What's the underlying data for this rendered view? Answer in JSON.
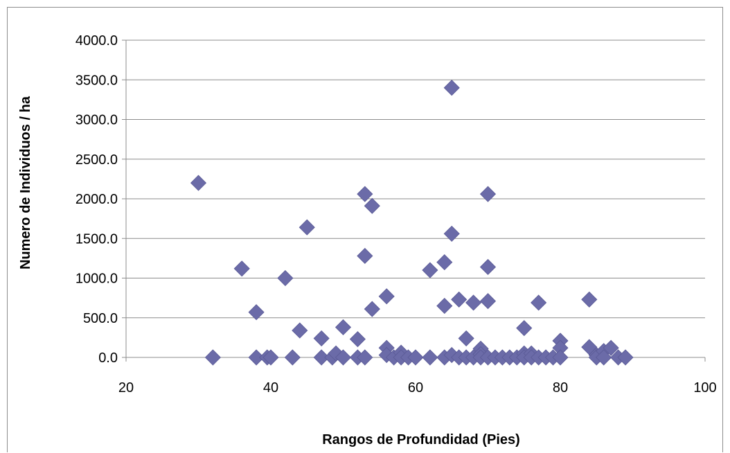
{
  "chart_data": {
    "type": "scatter",
    "title": "",
    "xlabel": "Rangos de Profundidad (Pies)",
    "ylabel": "Numero de Individuos / ha",
    "xlim": [
      20,
      100
    ],
    "ylim": [
      0,
      4000
    ],
    "x_ticks": [
      "20",
      "40",
      "60",
      "80",
      "100"
    ],
    "y_ticks": [
      "0.0",
      "500.0",
      "1000.0",
      "1500.0",
      "2000.0",
      "2500.0",
      "3000.0",
      "3500.0",
      "4000.0"
    ],
    "grid": "horizontal",
    "legend": "none",
    "marker": "diamond",
    "marker_color": "#6b6ba8",
    "points": [
      [
        30,
        2200
      ],
      [
        32,
        0
      ],
      [
        36,
        1120
      ],
      [
        38,
        570
      ],
      [
        38,
        0
      ],
      [
        39.5,
        0
      ],
      [
        40,
        0
      ],
      [
        42,
        1000
      ],
      [
        43,
        0
      ],
      [
        44,
        340
      ],
      [
        45,
        1640
      ],
      [
        47,
        240
      ],
      [
        47,
        0
      ],
      [
        48.5,
        0
      ],
      [
        49,
        50
      ],
      [
        50,
        380
      ],
      [
        50,
        0
      ],
      [
        52,
        230
      ],
      [
        52,
        0
      ],
      [
        53,
        2060
      ],
      [
        53,
        1280
      ],
      [
        53,
        0
      ],
      [
        54,
        1910
      ],
      [
        54,
        610
      ],
      [
        56,
        770
      ],
      [
        56,
        120
      ],
      [
        56,
        30
      ],
      [
        57,
        0
      ],
      [
        58,
        60
      ],
      [
        58,
        0
      ],
      [
        59,
        0
      ],
      [
        60,
        0
      ],
      [
        62,
        1100
      ],
      [
        62,
        0
      ],
      [
        64,
        1200
      ],
      [
        64,
        650
      ],
      [
        64,
        0
      ],
      [
        65,
        3400
      ],
      [
        65,
        1560
      ],
      [
        65,
        30
      ],
      [
        66,
        730
      ],
      [
        66,
        0
      ],
      [
        67,
        240
      ],
      [
        67,
        0
      ],
      [
        68,
        690
      ],
      [
        68,
        0
      ],
      [
        69,
        110
      ],
      [
        69,
        40
      ],
      [
        69,
        0
      ],
      [
        70,
        2060
      ],
      [
        70,
        1140
      ],
      [
        70,
        710
      ],
      [
        70,
        0
      ],
      [
        71,
        0
      ],
      [
        72,
        0
      ],
      [
        73,
        0
      ],
      [
        74,
        0
      ],
      [
        75,
        370
      ],
      [
        75,
        50
      ],
      [
        75,
        0
      ],
      [
        76,
        50
      ],
      [
        76,
        0
      ],
      [
        77,
        690
      ],
      [
        77,
        0
      ],
      [
        78,
        0
      ],
      [
        79,
        0
      ],
      [
        80,
        210
      ],
      [
        80,
        120
      ],
      [
        80,
        0
      ],
      [
        84,
        730
      ],
      [
        84,
        130
      ],
      [
        85,
        30
      ],
      [
        85,
        0
      ],
      [
        86,
        80
      ],
      [
        86,
        0
      ],
      [
        87,
        120
      ],
      [
        88,
        0
      ],
      [
        89,
        0
      ]
    ]
  }
}
